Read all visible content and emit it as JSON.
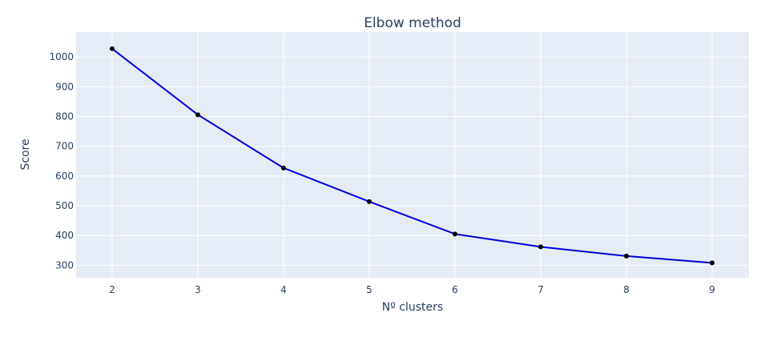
{
  "chart_data": {
    "type": "line",
    "title": "Elbow method",
    "xlabel": "Nº clusters",
    "ylabel": "Score",
    "x": [
      2,
      3,
      4,
      5,
      6,
      7,
      8,
      9
    ],
    "series": [
      {
        "values": [
          1028,
          806,
          627,
          514,
          405,
          362,
          331,
          308
        ],
        "line_color": "#0000dd",
        "marker_color": "#000000"
      }
    ],
    "xlim": [
      1.58,
      9.43
    ],
    "ylim": [
      258,
      1084
    ],
    "x_ticks": [
      2,
      3,
      4,
      5,
      6,
      7,
      8,
      9
    ],
    "y_ticks": [
      300,
      400,
      500,
      600,
      700,
      800,
      900,
      1000
    ],
    "grid": true,
    "legend": "none",
    "plot_background": "#e5ecf6",
    "grid_color": "#ffffff",
    "text_color": "#2a3f5f"
  }
}
